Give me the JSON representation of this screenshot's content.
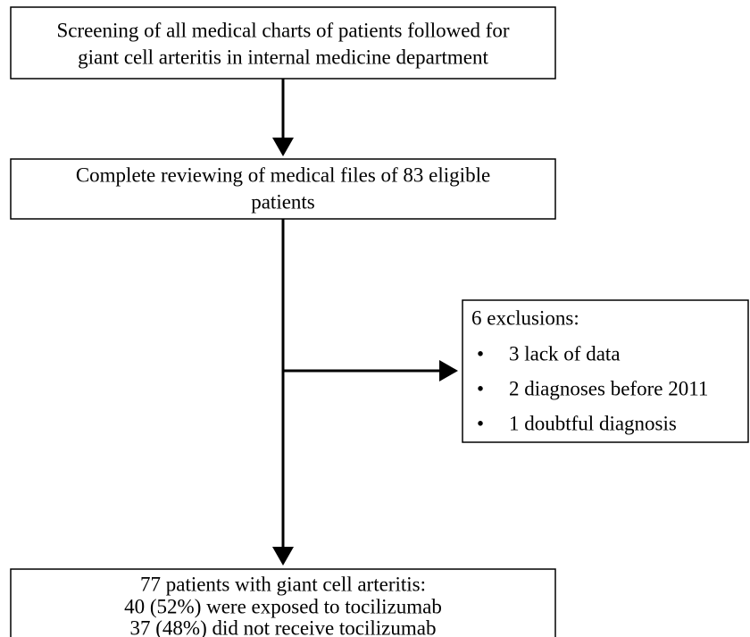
{
  "nodes": [
    {
      "lines": [
        "Screening of all medical charts of patients followed for",
        "giant cell arteritis in internal medicine department"
      ]
    },
    {
      "lines": [
        "Complete reviewing of medical files of 83 eligible",
        "patients"
      ]
    },
    {
      "title": "6 exclusions:",
      "items": [
        "3 lack of data",
        "2 diagnoses before 2011",
        "1 doubtful diagnosis"
      ]
    },
    {
      "lines": [
        "77 patients with giant cell arteritis:",
        "40 (52%) were exposed to tocilizumab",
        "37 (48%) did not receive tocilizumab"
      ]
    }
  ]
}
